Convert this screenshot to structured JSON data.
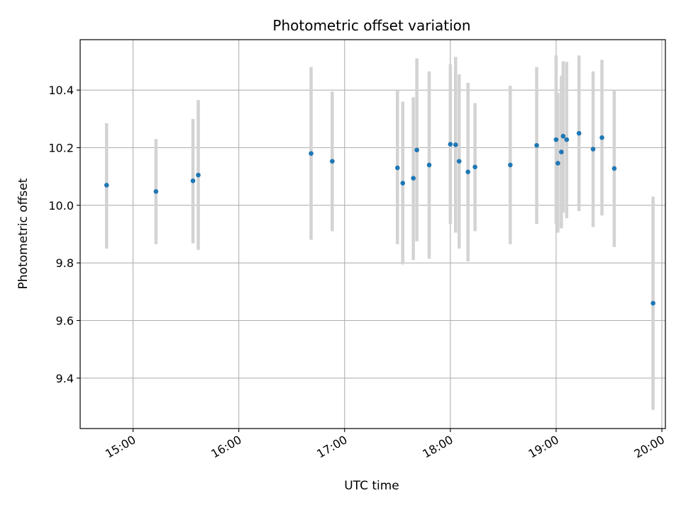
{
  "chart_data": {
    "type": "scatter",
    "title": "Photometric offset variation",
    "xlabel": "UTC time",
    "ylabel": "Photometric offset",
    "x_axis_type": "time",
    "xlim": [
      "14:30",
      "20:02"
    ],
    "ylim": [
      9.225,
      10.575
    ],
    "x_ticks": [
      "15:00",
      "16:00",
      "17:00",
      "18:00",
      "19:00",
      "20:00"
    ],
    "y_ticks": [
      9.4,
      9.6,
      9.8,
      10.0,
      10.2,
      10.4
    ],
    "y_tick_labels": [
      "9.4",
      "9.6",
      "9.8",
      "10.0",
      "10.2",
      "10.4"
    ],
    "grid": true,
    "point_color": "#1f77b4",
    "errorbar_color": "#d3d3d3",
    "points": [
      {
        "t": "14:45",
        "y": 10.07,
        "lo": 9.85,
        "hi": 10.285
      },
      {
        "t": "15:13",
        "y": 10.048,
        "lo": 9.865,
        "hi": 10.23
      },
      {
        "t": "15:34",
        "y": 10.085,
        "lo": 9.868,
        "hi": 10.3
      },
      {
        "t": "15:37",
        "y": 10.105,
        "lo": 9.845,
        "hi": 10.365
      },
      {
        "t": "16:41",
        "y": 10.18,
        "lo": 9.88,
        "hi": 10.48
      },
      {
        "t": "16:53",
        "y": 10.153,
        "lo": 9.91,
        "hi": 10.395
      },
      {
        "t": "17:30",
        "y": 10.13,
        "lo": 9.865,
        "hi": 10.4
      },
      {
        "t": "17:33",
        "y": 10.077,
        "lo": 9.795,
        "hi": 10.36
      },
      {
        "t": "17:39",
        "y": 10.094,
        "lo": 9.81,
        "hi": 10.375
      },
      {
        "t": "17:41",
        "y": 10.192,
        "lo": 9.875,
        "hi": 10.51
      },
      {
        "t": "17:48",
        "y": 10.14,
        "lo": 9.815,
        "hi": 10.465
      },
      {
        "t": "18:00",
        "y": 10.212,
        "lo": 9.935,
        "hi": 10.49
      },
      {
        "t": "18:03",
        "y": 10.21,
        "lo": 9.905,
        "hi": 10.515
      },
      {
        "t": "18:05",
        "y": 10.153,
        "lo": 9.85,
        "hi": 10.455
      },
      {
        "t": "18:10",
        "y": 10.116,
        "lo": 9.805,
        "hi": 10.425
      },
      {
        "t": "18:14",
        "y": 10.133,
        "lo": 9.91,
        "hi": 10.355
      },
      {
        "t": "18:34",
        "y": 10.14,
        "lo": 9.865,
        "hi": 10.415
      },
      {
        "t": "18:49",
        "y": 10.208,
        "lo": 9.935,
        "hi": 10.48
      },
      {
        "t": "19:00",
        "y": 10.228,
        "lo": 9.935,
        "hi": 10.52
      },
      {
        "t": "19:01",
        "y": 10.146,
        "lo": 9.905,
        "hi": 10.39
      },
      {
        "t": "19:03",
        "y": 10.185,
        "lo": 9.92,
        "hi": 10.45
      },
      {
        "t": "19:04",
        "y": 10.24,
        "lo": 9.975,
        "hi": 10.5
      },
      {
        "t": "19:06",
        "y": 10.228,
        "lo": 9.955,
        "hi": 10.498
      },
      {
        "t": "19:13",
        "y": 10.25,
        "lo": 9.98,
        "hi": 10.52
      },
      {
        "t": "19:21",
        "y": 10.195,
        "lo": 9.925,
        "hi": 10.465
      },
      {
        "t": "19:26",
        "y": 10.235,
        "lo": 9.965,
        "hi": 10.505
      },
      {
        "t": "19:33",
        "y": 10.128,
        "lo": 9.855,
        "hi": 10.4
      },
      {
        "t": "19:55",
        "y": 9.66,
        "lo": 9.29,
        "hi": 10.03
      }
    ]
  }
}
